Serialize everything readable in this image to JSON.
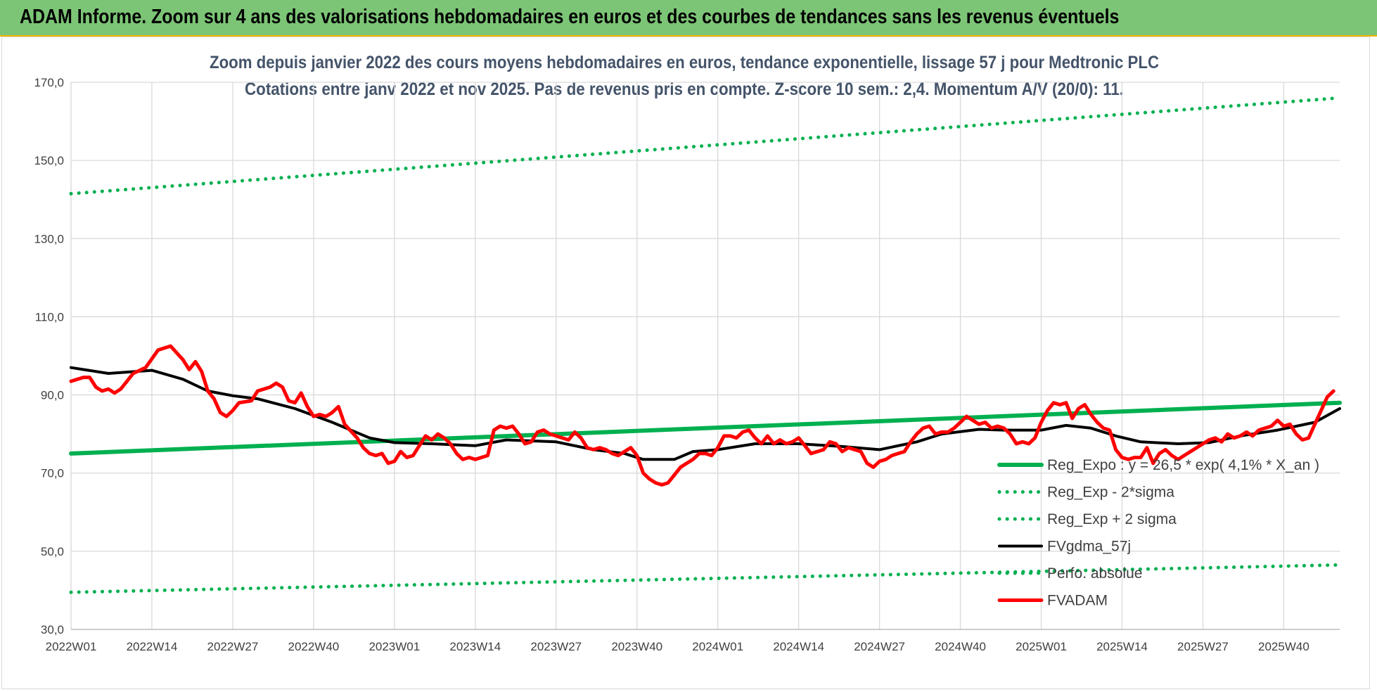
{
  "header": {
    "title": "ADAM Informe. Zoom sur 4 ans des valorisations hebdomadaires en euros et des courbes de tendances sans les revenus éventuels"
  },
  "colors": {
    "banner": "#7cc576",
    "regression": "#00b050",
    "moving_average": "#000000",
    "price": "#ff0000",
    "grid": "#d9d9d9"
  },
  "chart_data": {
    "type": "line",
    "title_lines": [
      "Zoom depuis janvier 2022 des cours moyens hebdomadaires en euros, tendance exponentielle, lissage 57 j pour Medtronic PLC",
      "Cotations entre janv 2022 et nov 2025. Pas de revenus pris en compte. Z-score 10 sem.: 2,4. Momentum A/V (20/0): 11."
    ],
    "ylim": [
      30,
      170
    ],
    "y_ticks": [
      "30,0",
      "50,0",
      "70,0",
      "90,0",
      "110,0",
      "130,0",
      "150,0",
      "170,0"
    ],
    "y_tick_values": [
      30,
      50,
      70,
      90,
      110,
      130,
      150,
      170
    ],
    "x_tick_labels": [
      "2022W01",
      "2022W14",
      "2022W27",
      "2022W40",
      "2023W01",
      "2023W14",
      "2023W27",
      "2023W40",
      "2024W01",
      "2024W14",
      "2024W27",
      "2024W40",
      "2025W01",
      "2025W14",
      "2025W27",
      "2025W40"
    ],
    "x_tick_index": [
      0,
      13,
      26,
      39,
      52,
      65,
      78,
      91,
      104,
      117,
      130,
      143,
      156,
      169,
      182,
      195
    ],
    "x_count": 205,
    "grid": true,
    "legend_position": "bottom-right",
    "series": [
      {
        "name": "Reg_Expo : y = 26,5 * exp( 4,1% * X_an )",
        "style": "solid-thick",
        "color": "#00b050",
        "points": [
          [
            0,
            75.0
          ],
          [
            204,
            88.0
          ]
        ]
      },
      {
        "name": "Reg_Exp - 2*sigma",
        "style": "dotted",
        "color": "#00b050",
        "points": [
          [
            0,
            39.5
          ],
          [
            204,
            46.5
          ]
        ]
      },
      {
        "name": "Reg_Exp + 2 sigma",
        "style": "dotted",
        "color": "#00b050",
        "points": [
          [
            0,
            141.5
          ],
          [
            204,
            166.0
          ]
        ]
      },
      {
        "name": "FVgdma_57j",
        "style": "solid",
        "color": "#000000",
        "points": [
          [
            0,
            97.0
          ],
          [
            6,
            95.5
          ],
          [
            13,
            96.3
          ],
          [
            18,
            94.0
          ],
          [
            22,
            91.0
          ],
          [
            26,
            89.8
          ],
          [
            30,
            89.0
          ],
          [
            36,
            86.5
          ],
          [
            42,
            83.0
          ],
          [
            48,
            79.0
          ],
          [
            52,
            77.8
          ],
          [
            58,
            77.5
          ],
          [
            65,
            77.0
          ],
          [
            70,
            78.5
          ],
          [
            78,
            78.0
          ],
          [
            84,
            76.0
          ],
          [
            89,
            75.0
          ],
          [
            92,
            73.5
          ],
          [
            97,
            73.5
          ],
          [
            100,
            75.5
          ],
          [
            104,
            76.0
          ],
          [
            110,
            77.5
          ],
          [
            117,
            77.5
          ],
          [
            124,
            76.8
          ],
          [
            130,
            76.0
          ],
          [
            136,
            78.0
          ],
          [
            140,
            80.0
          ],
          [
            146,
            81.2
          ],
          [
            150,
            81.0
          ],
          [
            156,
            81.0
          ],
          [
            160,
            82.2
          ],
          [
            164,
            81.5
          ],
          [
            168,
            79.5
          ],
          [
            172,
            78.0
          ],
          [
            178,
            77.5
          ],
          [
            183,
            77.8
          ],
          [
            188,
            79.5
          ],
          [
            194,
            81.0
          ],
          [
            200,
            83.0
          ],
          [
            204,
            86.5
          ]
        ]
      },
      {
        "name": "Perfo. absolue",
        "style": "dotted",
        "color": "#00b050",
        "points": []
      },
      {
        "name": "FVADAM",
        "style": "solid-thick",
        "color": "#ff0000",
        "points": [
          [
            0,
            93.5
          ],
          [
            2,
            94.5
          ],
          [
            3,
            94.5
          ],
          [
            4,
            92.0
          ],
          [
            5,
            91.0
          ],
          [
            6,
            91.5
          ],
          [
            7,
            90.5
          ],
          [
            8,
            91.5
          ],
          [
            10,
            95.5
          ],
          [
            12,
            97.0
          ],
          [
            14,
            101.5
          ],
          [
            16,
            102.5
          ],
          [
            18,
            99.0
          ],
          [
            19,
            96.5
          ],
          [
            20,
            98.5
          ],
          [
            21,
            96.0
          ],
          [
            22,
            91.0
          ],
          [
            23,
            89.0
          ],
          [
            24,
            85.5
          ],
          [
            25,
            84.5
          ],
          [
            26,
            86.0
          ],
          [
            27,
            88.0
          ],
          [
            29,
            88.5
          ],
          [
            30,
            91.0
          ],
          [
            32,
            92.0
          ],
          [
            33,
            93.0
          ],
          [
            34,
            92.0
          ],
          [
            35,
            88.5
          ],
          [
            36,
            88.0
          ],
          [
            37,
            90.5
          ],
          [
            38,
            87.0
          ],
          [
            39,
            84.5
          ],
          [
            40,
            85.0
          ],
          [
            41,
            84.5
          ],
          [
            42,
            85.5
          ],
          [
            43,
            87.0
          ],
          [
            44,
            82.5
          ],
          [
            46,
            79.0
          ],
          [
            47,
            76.5
          ],
          [
            48,
            75.0
          ],
          [
            49,
            74.5
          ],
          [
            50,
            75.0
          ],
          [
            51,
            72.5
          ],
          [
            52,
            73.0
          ],
          [
            53,
            75.5
          ],
          [
            54,
            74.0
          ],
          [
            55,
            74.5
          ],
          [
            56,
            77.0
          ],
          [
            57,
            79.5
          ],
          [
            58,
            78.5
          ],
          [
            59,
            80.0
          ],
          [
            60,
            79.0
          ],
          [
            61,
            77.5
          ],
          [
            62,
            75.0
          ],
          [
            63,
            73.5
          ],
          [
            64,
            74.0
          ],
          [
            65,
            73.5
          ],
          [
            66,
            74.0
          ],
          [
            67,
            74.5
          ],
          [
            68,
            81.0
          ],
          [
            69,
            82.0
          ],
          [
            70,
            81.5
          ],
          [
            71,
            82.0
          ],
          [
            72,
            80.0
          ],
          [
            73,
            77.5
          ],
          [
            74,
            78.0
          ],
          [
            75,
            80.5
          ],
          [
            76,
            81.0
          ],
          [
            77,
            80.0
          ],
          [
            78,
            79.5
          ],
          [
            79,
            79.0
          ],
          [
            80,
            78.5
          ],
          [
            81,
            80.5
          ],
          [
            82,
            79.0
          ],
          [
            83,
            76.5
          ],
          [
            84,
            76.0
          ],
          [
            85,
            76.5
          ],
          [
            86,
            76.0
          ],
          [
            87,
            75.0
          ],
          [
            88,
            74.5
          ],
          [
            89,
            75.5
          ],
          [
            90,
            76.5
          ],
          [
            91,
            74.5
          ],
          [
            92,
            70.0
          ],
          [
            93,
            68.5
          ],
          [
            94,
            67.5
          ],
          [
            95,
            67.0
          ],
          [
            96,
            67.5
          ],
          [
            97,
            69.5
          ],
          [
            98,
            71.5
          ],
          [
            99,
            72.5
          ],
          [
            100,
            73.5
          ],
          [
            101,
            75.0
          ],
          [
            102,
            75.0
          ],
          [
            103,
            74.5
          ],
          [
            104,
            76.5
          ],
          [
            105,
            79.5
          ],
          [
            106,
            79.5
          ],
          [
            107,
            79.0
          ],
          [
            108,
            80.5
          ],
          [
            109,
            81.0
          ],
          [
            110,
            79.0
          ],
          [
            111,
            77.5
          ],
          [
            112,
            79.5
          ],
          [
            113,
            77.5
          ],
          [
            114,
            78.5
          ],
          [
            115,
            77.5
          ],
          [
            116,
            78.0
          ],
          [
            117,
            79.0
          ],
          [
            118,
            77.0
          ],
          [
            119,
            75.0
          ],
          [
            120,
            75.5
          ],
          [
            121,
            76.0
          ],
          [
            122,
            78.0
          ],
          [
            123,
            77.5
          ],
          [
            124,
            75.5
          ],
          [
            125,
            76.5
          ],
          [
            126,
            76.0
          ],
          [
            127,
            75.5
          ],
          [
            128,
            72.5
          ],
          [
            129,
            71.5
          ],
          [
            130,
            73.0
          ],
          [
            131,
            73.5
          ],
          [
            132,
            74.5
          ],
          [
            133,
            75.0
          ],
          [
            134,
            75.5
          ],
          [
            135,
            78.0
          ],
          [
            136,
            80.0
          ],
          [
            137,
            81.5
          ],
          [
            138,
            82.0
          ],
          [
            139,
            80.0
          ],
          [
            140,
            80.5
          ],
          [
            141,
            80.5
          ],
          [
            142,
            81.5
          ],
          [
            143,
            83.0
          ],
          [
            144,
            84.5
          ],
          [
            145,
            83.5
          ],
          [
            146,
            82.5
          ],
          [
            147,
            83.0
          ],
          [
            148,
            81.5
          ],
          [
            149,
            82.0
          ],
          [
            150,
            81.5
          ],
          [
            151,
            80.0
          ],
          [
            152,
            77.5
          ],
          [
            153,
            78.0
          ],
          [
            154,
            77.5
          ],
          [
            155,
            79.0
          ],
          [
            156,
            83.0
          ],
          [
            157,
            86.0
          ],
          [
            158,
            88.0
          ],
          [
            159,
            87.5
          ],
          [
            160,
            88.0
          ],
          [
            161,
            84.0
          ],
          [
            162,
            86.5
          ],
          [
            163,
            87.5
          ],
          [
            164,
            85.0
          ],
          [
            165,
            83.0
          ],
          [
            166,
            81.5
          ],
          [
            167,
            81.0
          ],
          [
            168,
            76.0
          ],
          [
            169,
            74.0
          ],
          [
            170,
            73.5
          ],
          [
            171,
            74.0
          ],
          [
            172,
            74.0
          ],
          [
            173,
            76.5
          ],
          [
            174,
            72.5
          ],
          [
            175,
            75.0
          ],
          [
            176,
            76.0
          ],
          [
            177,
            74.5
          ],
          [
            178,
            73.5
          ],
          [
            179,
            74.5
          ],
          [
            180,
            75.5
          ],
          [
            181,
            76.5
          ],
          [
            182,
            77.5
          ],
          [
            183,
            78.5
          ],
          [
            184,
            79.0
          ],
          [
            185,
            78.0
          ],
          [
            186,
            80.0
          ],
          [
            187,
            79.0
          ],
          [
            188,
            79.5
          ],
          [
            189,
            80.5
          ],
          [
            190,
            79.5
          ],
          [
            191,
            81.0
          ],
          [
            192,
            81.5
          ],
          [
            193,
            82.0
          ],
          [
            194,
            83.5
          ],
          [
            195,
            82.0
          ],
          [
            196,
            82.5
          ],
          [
            197,
            80.0
          ],
          [
            198,
            78.5
          ],
          [
            199,
            79.0
          ],
          [
            200,
            82.5
          ],
          [
            201,
            86.0
          ],
          [
            202,
            89.5
          ],
          [
            203,
            91.0
          ]
        ]
      }
    ]
  }
}
